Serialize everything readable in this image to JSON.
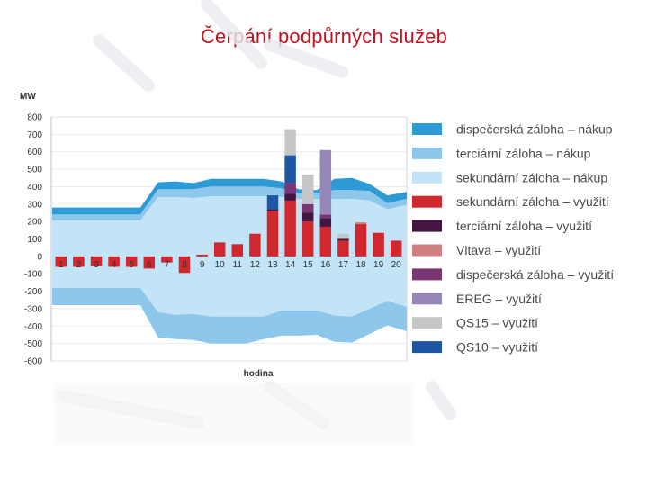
{
  "page": {
    "title": "Čerpání podpůrných služeb"
  },
  "chart_data": {
    "type": "area",
    "ylabel": "MW",
    "xlabel": "hodina",
    "ylim": [
      -600,
      800
    ],
    "yticks": [
      800,
      700,
      600,
      500,
      400,
      300,
      200,
      100,
      0,
      -100,
      -200,
      -300,
      -400,
      -500,
      -600
    ],
    "x": [
      1,
      2,
      3,
      4,
      5,
      6,
      7,
      8,
      9,
      10,
      11,
      12,
      13,
      14,
      15,
      16,
      17,
      18,
      19,
      20,
      21
    ],
    "x_labels": [
      "1",
      "2",
      "3",
      "4",
      "5",
      "6",
      "7",
      "8",
      "9",
      "10",
      "11",
      "12",
      "13",
      "14",
      "15",
      "16",
      "17",
      "18",
      "19",
      "20"
    ],
    "legend_position": "right",
    "areas_up": {
      "secondary_purchase": [
        205,
        205,
        205,
        205,
        205,
        205,
        340,
        340,
        335,
        345,
        345,
        345,
        345,
        340,
        330,
        330,
        330,
        330,
        320,
        270,
        295
      ],
      "tertiary_purchase": [
        240,
        240,
        240,
        240,
        240,
        240,
        385,
        385,
        385,
        400,
        400,
        400,
        400,
        390,
        360,
        360,
        380,
        380,
        375,
        305,
        330
      ],
      "dispatch_purchase": [
        280,
        280,
        280,
        280,
        280,
        280,
        425,
        430,
        420,
        445,
        445,
        445,
        445,
        430,
        385,
        380,
        445,
        450,
        415,
        350,
        370
      ]
    },
    "areas_down": {
      "secondary_purchase": [
        -180,
        -180,
        -180,
        -180,
        -180,
        -180,
        -320,
        -335,
        -330,
        -345,
        -345,
        -345,
        -345,
        -310,
        -310,
        -310,
        -340,
        -345,
        -300,
        -255,
        -290
      ],
      "tertiary_purchase": [
        -280,
        -280,
        -280,
        -280,
        -280,
        -280,
        -465,
        -475,
        -480,
        -500,
        -500,
        -500,
        -475,
        -455,
        -455,
        -450,
        -490,
        -495,
        -445,
        -395,
        -430
      ]
    },
    "bars_negative": [
      -60,
      -60,
      -55,
      -60,
      -60,
      -70,
      -35,
      -95,
      0,
      0,
      0,
      0,
      0,
      0,
      0,
      0,
      0,
      0,
      0,
      0
    ],
    "bars_stacked": [
      {
        "hour": 9,
        "segments": [
          10
        ]
      },
      {
        "hour": 10,
        "segments": [
          80
        ]
      },
      {
        "hour": 11,
        "segments": [
          70
        ]
      },
      {
        "hour": 12,
        "segments": [
          130
        ]
      },
      {
        "hour": 13,
        "segments": [
          260,
          10,
          0,
          0,
          0,
          0,
          80
        ]
      },
      {
        "hour": 14,
        "segments": [
          320,
          40,
          0,
          60,
          0,
          0,
          160,
          150
        ]
      },
      {
        "hour": 15,
        "segments": [
          200,
          50,
          0,
          50,
          0,
          0,
          0,
          170
        ]
      },
      {
        "hour": 16,
        "segments": [
          170,
          50,
          0,
          20,
          0,
          0,
          0,
          0,
          370
        ]
      },
      {
        "hour": 17,
        "segments": [
          90,
          10,
          0,
          0,
          0,
          0,
          0,
          30
        ]
      },
      {
        "hour": 18,
        "segments": [
          185,
          0,
          10
        ]
      },
      {
        "hour": 19,
        "segments": [
          135
        ]
      },
      {
        "hour": 20,
        "segments": [
          90
        ]
      }
    ],
    "segment_order": [
      "secondary_use",
      "tertiary_use",
      "vltava_use",
      "dispatch_use",
      "x1",
      "x2",
      "qs10_use",
      "qs15_use",
      "ereg_use"
    ],
    "legend": [
      {
        "key": "dispatch_purchase",
        "label": "dispečerská záloha – nákup",
        "color": "#2e9bd6"
      },
      {
        "key": "tertiary_purchase",
        "label": "terciární záloha – nákup",
        "color": "#8dc8ec"
      },
      {
        "key": "secondary_purchase",
        "label": "sekundární záloha – nákup",
        "color": "#c3e3f7"
      },
      {
        "key": "secondary_use",
        "label": "sekundární záloha – využití",
        "color": "#d0282e"
      },
      {
        "key": "tertiary_use",
        "label": "terciární záloha – využití",
        "color": "#431540"
      },
      {
        "key": "vltava_use",
        "label": "Vltava – využití",
        "color": "#d08080"
      },
      {
        "key": "dispatch_use",
        "label": "dispečerská záloha – využití",
        "color": "#7a3672"
      },
      {
        "key": "ereg_use",
        "label": "EREG – využití",
        "color": "#9786b8"
      },
      {
        "key": "qs15_use",
        "label": "QS15 – využití",
        "color": "#c6c6c8"
      },
      {
        "key": "qs10_use",
        "label": "QS10 – využití",
        "color": "#1f56a4"
      }
    ]
  }
}
